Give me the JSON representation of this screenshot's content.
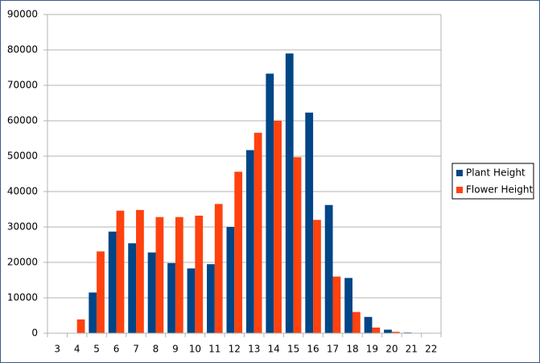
{
  "chart_data": {
    "type": "bar",
    "categories": [
      "3",
      "4",
      "5",
      "6",
      "7",
      "8",
      "9",
      "10",
      "11",
      "12",
      "13",
      "14",
      "15",
      "16",
      "17",
      "18",
      "19",
      "20",
      "21",
      "22"
    ],
    "series": [
      {
        "name": "Plant Height",
        "color": "#004586",
        "values": [
          0,
          0,
          11500,
          28700,
          25400,
          22800,
          19800,
          18300,
          19500,
          30000,
          51700,
          73300,
          79000,
          62300,
          36200,
          15600,
          4600,
          1000,
          200,
          0
        ]
      },
      {
        "name": "Flower Height",
        "color": "#ff420e",
        "values": [
          100,
          3900,
          23100,
          34600,
          34800,
          32800,
          32800,
          33200,
          36500,
          45600,
          56600,
          60000,
          49700,
          32000,
          16000,
          6000,
          1600,
          400,
          100,
          0
        ]
      }
    ],
    "ylim": [
      0,
      90000
    ],
    "yticks": [
      0,
      10000,
      20000,
      30000,
      40000,
      50000,
      60000,
      70000,
      80000,
      90000
    ],
    "grid": true,
    "legend": "right"
  }
}
